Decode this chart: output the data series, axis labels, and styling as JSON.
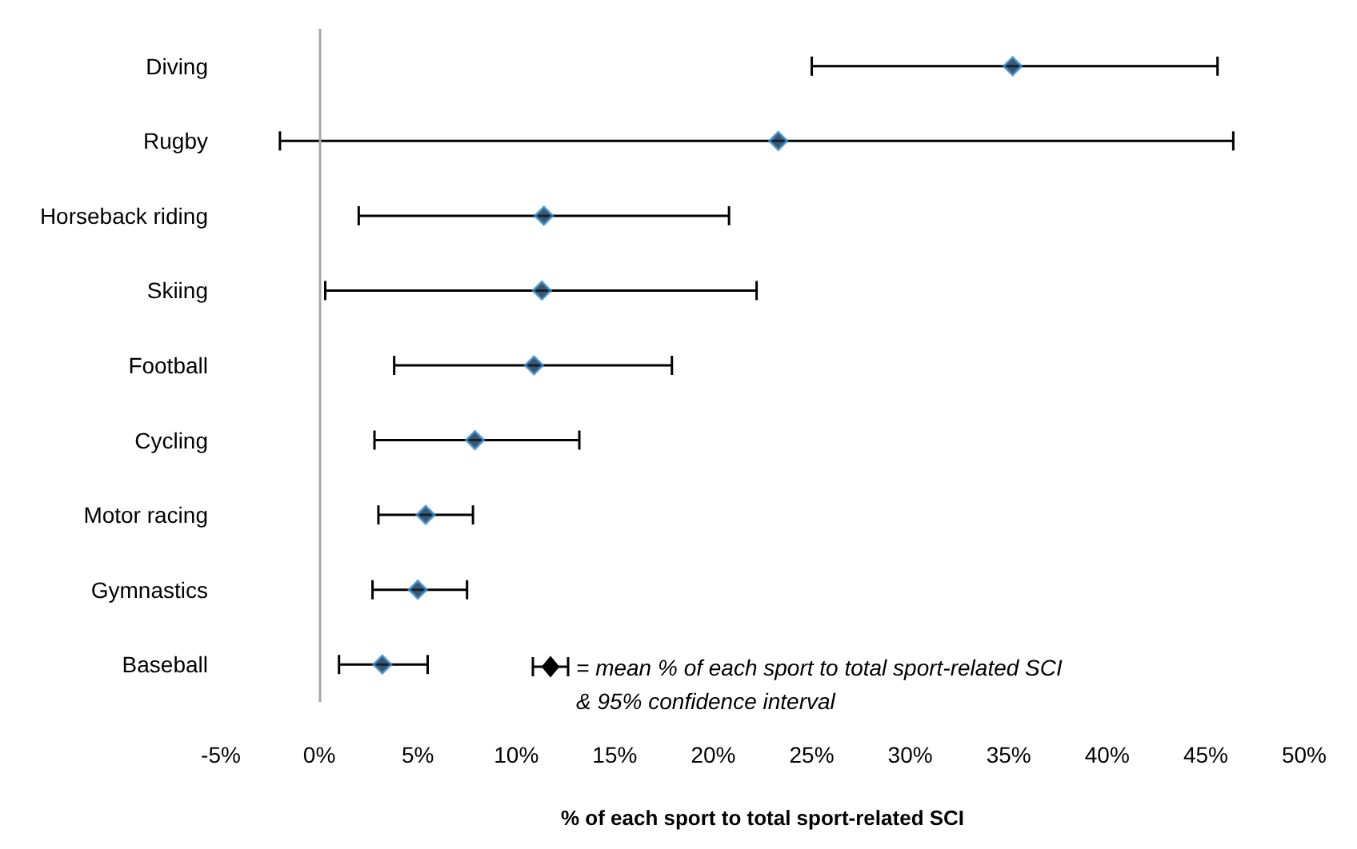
{
  "chart_data": {
    "type": "scatter",
    "xlabel": "% of each sport to total sport-related SCI",
    "orientation": "horizontal",
    "categories": [
      "Diving",
      "Rugby",
      "Horseback riding",
      "Skiing",
      "Football",
      "Cycling",
      "Motor racing",
      "Gymnastics",
      "Baseball"
    ],
    "values": [
      35.2,
      23.3,
      11.4,
      11.3,
      10.9,
      7.9,
      5.4,
      5.0,
      3.2
    ],
    "errors": [
      [
        25.0,
        45.6
      ],
      [
        -2.0,
        46.4
      ],
      [
        2.0,
        20.8
      ],
      [
        0.3,
        22.2
      ],
      [
        3.8,
        17.9
      ],
      [
        2.8,
        13.2
      ],
      [
        3.0,
        7.8
      ],
      [
        2.7,
        7.5
      ],
      [
        1.0,
        5.5
      ]
    ],
    "color": "#0f2b45",
    "marker": "diamond",
    "grid": false,
    "xlim": [
      -5,
      50
    ],
    "xticks": [
      {
        "value": -5,
        "label": "-5%"
      },
      {
        "value": 0,
        "label": "0%"
      },
      {
        "value": 5,
        "label": "5%"
      },
      {
        "value": 10,
        "label": "10%"
      },
      {
        "value": 15,
        "label": "15%"
      },
      {
        "value": 20,
        "label": "20%"
      },
      {
        "value": 25,
        "label": "25%"
      },
      {
        "value": 30,
        "label": "30%"
      },
      {
        "value": 35,
        "label": "35%"
      },
      {
        "value": 40,
        "label": "40%"
      },
      {
        "value": 45,
        "label": "45%"
      },
      {
        "value": 50,
        "label": "50%"
      }
    ],
    "ref_lines": [
      {
        "axis": "x",
        "value": 0,
        "color": "#a6a6a6"
      }
    ],
    "annotations": [
      "= mean % of each sport to total sport-related SCI\n& 95% confidence interval"
    ]
  }
}
